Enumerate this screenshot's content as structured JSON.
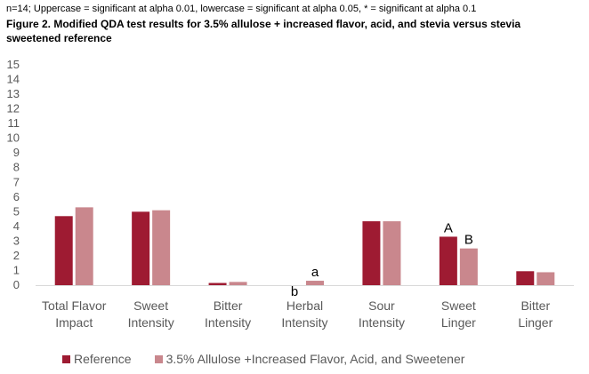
{
  "note": "n=14; Uppercase = significant at alpha 0.01, lowercase = significant at alpha 0.05, * = significant at alpha 0.1",
  "title": "Figure 2. Modified QDA test results for 3.5% allulose + increased flavor, acid, and stevia versus stevia sweetened reference",
  "colors": {
    "reference": "#9E1B32",
    "allulose": "#C9878D",
    "tick": "#595959",
    "axis": "#D9D9D9"
  },
  "chart_data": {
    "type": "bar",
    "categories": [
      [
        "Total Flavor",
        "Impact"
      ],
      [
        "Sweet",
        "Intensity"
      ],
      [
        "Bitter",
        "Intensity"
      ],
      [
        "Herbal",
        "Intensity"
      ],
      [
        "Sour",
        "Intensity"
      ],
      [
        "Sweet",
        "Linger"
      ],
      [
        "Bitter",
        "Linger"
      ]
    ],
    "series": [
      {
        "name": "Reference",
        "values": [
          4.7,
          5.0,
          0.15,
          0.0,
          4.35,
          3.3,
          0.95
        ],
        "labels": [
          "",
          "",
          "",
          "b",
          "",
          "A",
          ""
        ]
      },
      {
        "name": "3.5% Allulose +Increased Flavor, Acid, and Sweetener",
        "values": [
          5.3,
          5.1,
          0.22,
          0.3,
          4.35,
          2.5,
          0.88
        ],
        "labels": [
          "",
          "",
          "",
          "a",
          "",
          "B",
          ""
        ]
      }
    ],
    "ylim": [
      0,
      15
    ],
    "yticks": [
      "0",
      "1",
      "2",
      "3",
      "4",
      "5",
      "6",
      "7",
      "8",
      "9",
      "10",
      "11",
      "12",
      "13",
      "14",
      "15"
    ],
    "grid": false,
    "legend": "bottom"
  }
}
